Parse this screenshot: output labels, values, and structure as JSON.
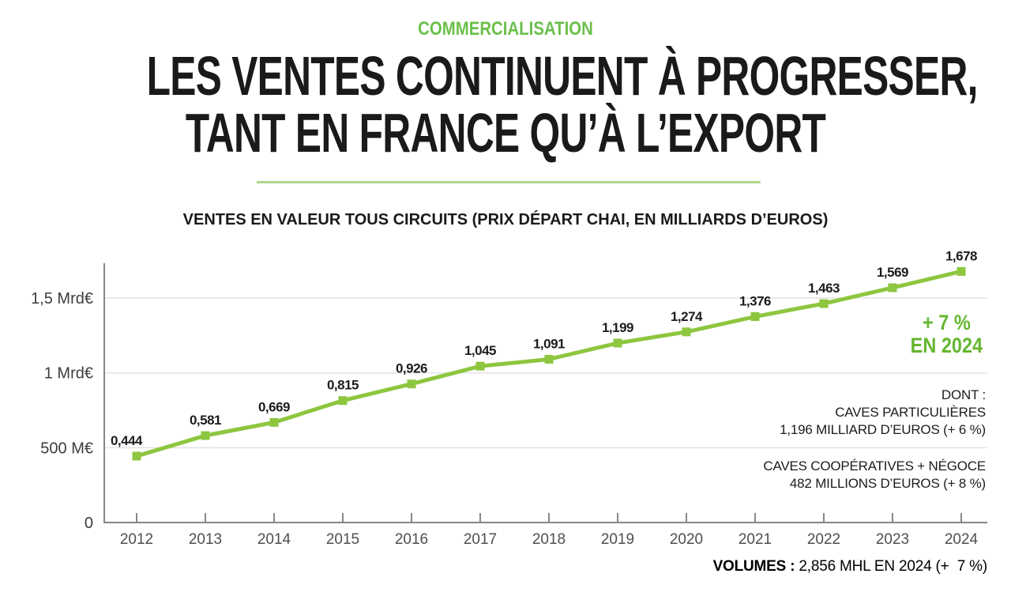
{
  "page": {
    "kicker": "COMMERCIALISATION",
    "title_line1": "LES VENTES CONTINUENT À PROGRESSER,",
    "title_line2": "TANT EN FRANCE QU’À L’EXPORT"
  },
  "chart_data": {
    "type": "line",
    "title": "VENTES EN VALEUR TOUS CIRCUITS (PRIX DÉPART CHAI, EN MILLIARDS D’EUROS)",
    "categories": [
      "2012",
      "2013",
      "2014",
      "2015",
      "2016",
      "2017",
      "2018",
      "2019",
      "2020",
      "2021",
      "2022",
      "2023",
      "2024"
    ],
    "values": [
      0.444,
      0.581,
      0.669,
      0.815,
      0.926,
      1.045,
      1.091,
      1.199,
      1.274,
      1.376,
      1.463,
      1.569,
      1.678
    ],
    "point_labels": [
      "0,444",
      "0,581",
      "0,669",
      "0,815",
      "0,926",
      "1,045",
      "1,091",
      "1,199",
      "1,274",
      "1,376",
      "1,463",
      "1,569",
      "1,678"
    ],
    "unit": "milliards d'euros",
    "ylim": [
      0,
      1.75
    ],
    "y_ticks": [
      {
        "v": 0,
        "label": "0"
      },
      {
        "v": 0.5,
        "label": "500 M€"
      },
      {
        "v": 1,
        "label": "1 Mrd€"
      },
      {
        "v": 1.5,
        "label": "1,5 Mrd€"
      }
    ],
    "grid": "horizontal",
    "legend": "none",
    "line_color": "#8dc63f",
    "marker": "square"
  },
  "annotations": {
    "growth_line1": "+ 7 %",
    "growth_line2": "EN 2024",
    "dont_line1": "DONT :",
    "dont_line2": "CAVES PARTICULIÈRES",
    "dont_line3": "1,196 MILLIARD D’EUROS (+ 6 %)",
    "coop_line1": "CAVES COOPÉRATIVES + NÉGOCE",
    "coop_line2": "482 MILLIONS D’EUROS (+ 8 %)",
    "volumes_label": "VOLUMES : ",
    "volumes_value": "2,856 MHL EN 2024 (+  7 %)"
  },
  "colors": {
    "kicker_green": "#6bbf4a",
    "growth_green": "#65b72f",
    "line_green": "#8dc63f",
    "divider_green": "#b2d78c",
    "gridline": "#e3e3e3",
    "axis": "#878787",
    "axis_label": "#3c3c3b",
    "year_label": "#4f4f4f",
    "text_dark": "#1d1d1b"
  }
}
